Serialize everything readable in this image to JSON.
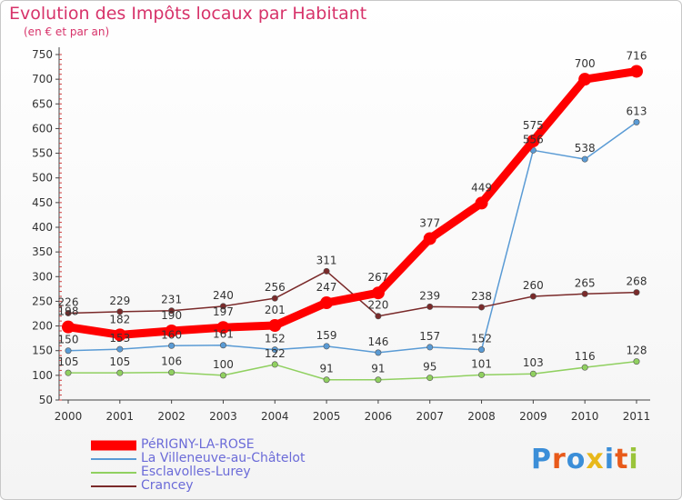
{
  "header": {
    "title": "Evolution des Impôts locaux par Habitant",
    "subtitle": "(en € et par an)"
  },
  "logo": {
    "text": "Proxiti",
    "colors": [
      "#3b8ed8",
      "#e85a1a",
      "#3b8ed8",
      "#e8b81a",
      "#3b8ed8",
      "#e85a1a",
      "#9ac43a"
    ]
  },
  "chart_data": {
    "type": "line",
    "x": [
      "2000",
      "2001",
      "2002",
      "2003",
      "2004",
      "2005",
      "2006",
      "2007",
      "2008",
      "2009",
      "2010",
      "2011"
    ],
    "ylim": [
      50,
      750
    ],
    "yticks": [
      50,
      100,
      150,
      200,
      250,
      300,
      350,
      400,
      450,
      500,
      550,
      600,
      650,
      700,
      750
    ],
    "grid": false,
    "legend_position": "bottom-left",
    "series": [
      {
        "name": "PéRIGNY-LA-ROSE",
        "color": "#ff0000",
        "values": [
          198,
          182,
          190,
          197,
          201,
          247,
          267,
          377,
          449,
          575,
          700,
          716
        ]
      },
      {
        "name": "La Villeneuve-au-Châtelot",
        "color": "#5a9bd5",
        "values": [
          150,
          153,
          160,
          161,
          152,
          159,
          146,
          157,
          152,
          556,
          538,
          613
        ]
      },
      {
        "name": "Esclavolles-Lurey",
        "color": "#90d060",
        "values": [
          105,
          105,
          106,
          100,
          122,
          91,
          91,
          95,
          101,
          103,
          116,
          128
        ]
      },
      {
        "name": "Crancey",
        "color": "#7a2a2a",
        "values": [
          226,
          229,
          231,
          240,
          256,
          311,
          220,
          239,
          238,
          260,
          265,
          268
        ]
      }
    ]
  }
}
